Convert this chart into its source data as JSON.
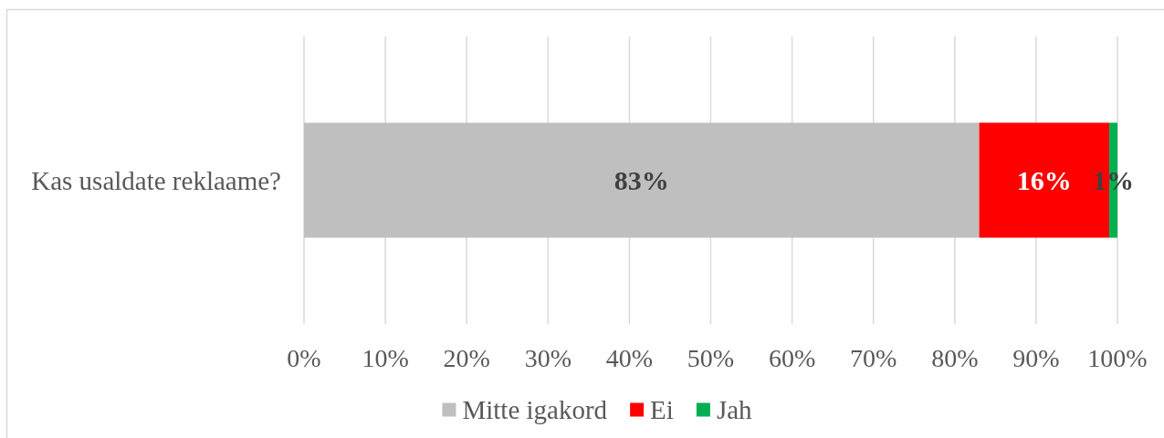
{
  "chart_data": {
    "type": "bar",
    "orientation": "horizontal",
    "stacked": true,
    "categories": [
      "Kas usaldate reklaame?"
    ],
    "series": [
      {
        "name": "Mitte igakord",
        "color": "#bfbfbf",
        "values": [
          83
        ],
        "value_labels": [
          "83%"
        ]
      },
      {
        "name": "Ei",
        "color": "#ff0000",
        "values": [
          16
        ],
        "value_labels": [
          "16%"
        ]
      },
      {
        "name": "Jah",
        "color": "#00b050",
        "values": [
          1
        ],
        "value_labels": [
          "1%"
        ]
      }
    ],
    "xlim": [
      0,
      100
    ],
    "xticks": [
      {
        "value": 0,
        "label": "0%"
      },
      {
        "value": 10,
        "label": "10%"
      },
      {
        "value": 20,
        "label": "20%"
      },
      {
        "value": 30,
        "label": "30%"
      },
      {
        "value": 40,
        "label": "40%"
      },
      {
        "value": 50,
        "label": "50%"
      },
      {
        "value": 60,
        "label": "60%"
      },
      {
        "value": 70,
        "label": "70%"
      },
      {
        "value": 80,
        "label": "80%"
      },
      {
        "value": 90,
        "label": "90%"
      },
      {
        "value": 100,
        "label": "100%"
      }
    ],
    "grid": "x",
    "legend": "bottom"
  }
}
